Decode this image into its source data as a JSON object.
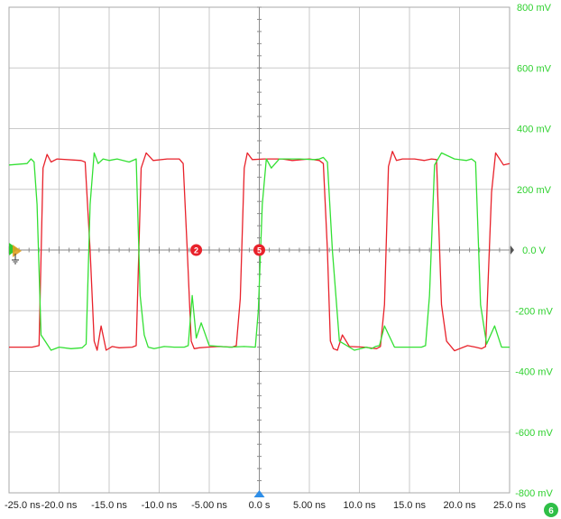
{
  "chart_data": {
    "type": "line",
    "title": "",
    "xlabel": "",
    "ylabel": "",
    "x_unit": "ns",
    "y_unit": "mV",
    "xlim": [
      -25,
      25
    ],
    "ylim": [
      -800,
      800
    ],
    "grid": true,
    "x_tick_values": [
      -25,
      -20,
      -15,
      -10,
      -5,
      0,
      5,
      10,
      15,
      20,
      25
    ],
    "x_tick_labels": [
      "-25.0 ns",
      "-20.0 ns",
      "-15.0 ns",
      "-10.0 ns",
      "-5.00 ns",
      "0.0 s",
      "5.00 ns",
      "10.0 ns",
      "15.0 ns",
      "20.0 ns",
      "25.0 ns"
    ],
    "y_tick_values": [
      800,
      600,
      400,
      200,
      0,
      -200,
      -400,
      -600,
      -800
    ],
    "y_tick_labels": [
      "800 mV",
      "600 mV",
      "400 mV",
      "200 mV",
      "0.0 V",
      "-200 mV",
      "-400 mV",
      "-600 mV",
      "-800 mV"
    ],
    "series": [
      {
        "color": "#e8222b",
        "x": [
          -25,
          -22.7,
          -22.0,
          -21.6,
          -21.2,
          -20.8,
          -20.2,
          -17.8,
          -17.4,
          -16.9,
          -16.5,
          -16.2,
          -15.8,
          -15.3,
          -14.7,
          -14.0,
          -12.7,
          -12.3,
          -11.8,
          -11.3,
          -10.6,
          -9.2,
          -8.0,
          -7.6,
          -7.2,
          -6.8,
          -6.5,
          -6.0,
          -5.2,
          -4.0,
          -2.7,
          -2.3,
          -1.9,
          -1.5,
          -1.2,
          -0.7,
          0.5,
          2.3,
          3.3,
          5.0,
          6.0,
          6.4,
          6.8,
          7.1,
          7.4,
          7.8,
          8.3,
          9.0,
          10.5,
          11.7,
          12.1,
          12.5,
          12.9,
          13.3,
          13.7,
          14.3,
          15.5,
          16.5,
          17.2,
          17.7,
          18.2,
          18.7,
          19.5,
          20.8,
          21.6,
          22.2,
          22.6,
          23.2,
          23.6,
          24.4,
          25.0
        ],
        "values": [
          -320,
          -320,
          -315,
          270,
          315,
          290,
          300,
          295,
          290,
          0,
          -300,
          -330,
          -250,
          -330,
          -318,
          -322,
          -320,
          -315,
          270,
          320,
          295,
          300,
          300,
          285,
          0,
          -300,
          -325,
          -322,
          -320,
          -318,
          -320,
          -315,
          -160,
          270,
          320,
          298,
          300,
          300,
          295,
          300,
          295,
          285,
          0,
          -300,
          -325,
          -330,
          -280,
          -318,
          -320,
          -325,
          -318,
          -180,
          275,
          325,
          295,
          300,
          300,
          295,
          300,
          298,
          -180,
          -300,
          -332,
          -315,
          -320,
          -325,
          -318,
          190,
          320,
          280,
          285
        ]
      },
      {
        "color": "#33e033",
        "x": [
          -25,
          -23.2,
          -22.8,
          -22.5,
          -22.2,
          -21.8,
          -21.4,
          -20.8,
          -20.0,
          -18.8,
          -17.7,
          -17.3,
          -16.9,
          -16.5,
          -16.1,
          -15.6,
          -15.0,
          -14.2,
          -13.0,
          -12.3,
          -11.9,
          -11.5,
          -11.1,
          -10.5,
          -9.5,
          -8.5,
          -7.5,
          -7.1,
          -6.7,
          -6.3,
          -5.8,
          -5.0,
          -3.0,
          -1.5,
          -0.4,
          -0.1,
          0.3,
          0.7,
          1.2,
          2.0,
          4.0,
          5.5,
          6.0,
          6.4,
          6.8,
          7.3,
          8.0,
          9.5,
          10.7,
          11.2,
          11.6,
          12.0,
          12.5,
          13.5,
          15.0,
          16.2,
          16.6,
          17.0,
          17.5,
          18.2,
          19.5,
          20.7,
          21.2,
          21.6,
          22.1,
          22.7,
          23.5,
          24.2,
          25.0
        ],
        "values": [
          280,
          285,
          300,
          290,
          150,
          -280,
          -300,
          -330,
          -320,
          -325,
          -322,
          -310,
          150,
          320,
          285,
          300,
          295,
          300,
          290,
          300,
          -150,
          -280,
          -320,
          -325,
          -318,
          -320,
          -320,
          -315,
          -150,
          -290,
          -240,
          -315,
          -320,
          -318,
          -320,
          -200,
          150,
          300,
          270,
          300,
          300,
          298,
          300,
          305,
          290,
          0,
          -300,
          -330,
          -320,
          -325,
          -318,
          -315,
          -250,
          -320,
          -320,
          -320,
          -315,
          -150,
          280,
          320,
          300,
          295,
          300,
          290,
          -180,
          -310,
          -250,
          -320,
          -320
        ]
      }
    ],
    "markers": [
      {
        "label": "2",
        "x": -6.3,
        "y": 0,
        "color": "#e8222b"
      },
      {
        "label": "5",
        "x": 0,
        "y": 0,
        "color": "#e8222b"
      }
    ],
    "reference_markers": {
      "trigger_x": 0,
      "channel_badge": "6",
      "channel_badge_color": "#2fbf47"
    }
  }
}
